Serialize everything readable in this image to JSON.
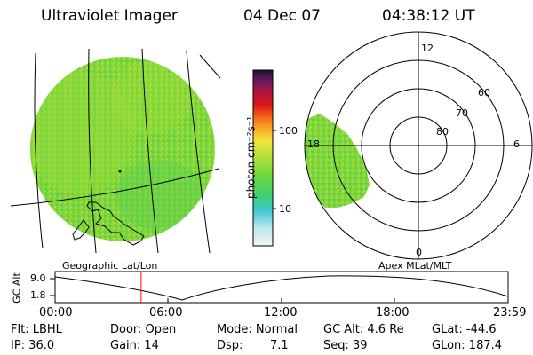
{
  "header": {
    "instrument": "Ultraviolet Imager",
    "date": "04 Dec 07",
    "time": "04:38:12 UT"
  },
  "colorbar": {
    "label": "photon cm⁻²s⁻¹",
    "ticks": [
      "100",
      "10"
    ]
  },
  "polar_plot": {
    "mlt_labels": [
      "12",
      "18",
      "6",
      "0"
    ],
    "lat_labels": [
      "60",
      "70",
      "80"
    ]
  },
  "projections": {
    "left": "Geographic Lat/Lon",
    "right": "Apex MLat/MLT"
  },
  "timeline": {
    "ylabel": "GC Alt",
    "ymax": "9.0",
    "ymin": "1.8",
    "xticks": [
      "00:00",
      "06:00",
      "12:00",
      "18:00",
      "23:59"
    ],
    "current_time_fraction": 0.19
  },
  "status": {
    "flt": "Flt: LBHL",
    "door": "Door: Open",
    "mode": "Mode: Normal",
    "gc_alt": "GC Alt: 4.6 Re",
    "glat": "GLat: -44.6",
    "ip": "IP: 36.0",
    "gain": "Gain: 14",
    "dsp_label": "Dsp:",
    "dsp_value": "7.1",
    "seq": "Seq: 39",
    "glon": "GLon: 187.4"
  },
  "colors": {
    "auroral_green": "#66d83a",
    "current_time_marker": "#ff0000"
  }
}
